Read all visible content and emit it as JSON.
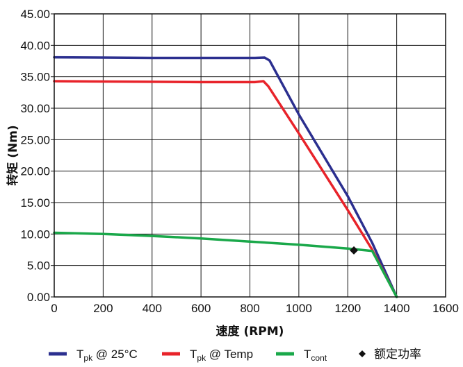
{
  "chart_data": {
    "type": "line",
    "xlabel": "速度 (RPM)",
    "ylabel": "转矩 (Nm)",
    "xlim": [
      0,
      1600
    ],
    "ylim": [
      0,
      45
    ],
    "x_ticks": [
      "0",
      "200",
      "400",
      "600",
      "800",
      "1000",
      "1200",
      "1400",
      "1600"
    ],
    "y_ticks": [
      "0.00",
      "5.00",
      "10.00",
      "15.00",
      "20.00",
      "25.00",
      "30.00",
      "35.00",
      "40.00",
      "45.00"
    ],
    "grid": true,
    "legend_position": "bottom",
    "series": [
      {
        "name": "T@ 25°C",
        "legend_main": "T",
        "legend_sub": "pk",
        "legend_suffix": " @ 25°C",
        "color": "#2b2f8f",
        "points": [
          [
            0,
            38.1
          ],
          [
            200,
            38.05
          ],
          [
            400,
            38.0
          ],
          [
            600,
            38.0
          ],
          [
            820,
            38.0
          ],
          [
            860,
            38.05
          ],
          [
            880,
            37.6
          ],
          [
            1000,
            29.0
          ],
          [
            1200,
            16.0
          ],
          [
            1300,
            8.6
          ],
          [
            1400,
            0.0
          ]
        ]
      },
      {
        "name": "T@ Temp",
        "legend_main": "T",
        "legend_sub": "pk",
        "legend_suffix": " @ Temp",
        "color": "#e8232a",
        "points": [
          [
            0,
            34.3
          ],
          [
            200,
            34.25
          ],
          [
            400,
            34.2
          ],
          [
            600,
            34.15
          ],
          [
            820,
            34.15
          ],
          [
            855,
            34.3
          ],
          [
            875,
            33.5
          ],
          [
            1000,
            26.0
          ],
          [
            1200,
            13.8
          ],
          [
            1300,
            7.5
          ],
          [
            1400,
            0.0
          ]
        ]
      },
      {
        "name": "T",
        "legend_main": "T",
        "legend_sub": "cont",
        "legend_suffix": "",
        "color": "#1aa84a",
        "points": [
          [
            0,
            10.2
          ],
          [
            200,
            10.0
          ],
          [
            400,
            9.7
          ],
          [
            600,
            9.3
          ],
          [
            800,
            8.8
          ],
          [
            1000,
            8.3
          ],
          [
            1200,
            7.7
          ],
          [
            1300,
            7.3
          ],
          [
            1400,
            0.0
          ]
        ]
      }
    ],
    "markers": [
      {
        "name": "额定功率",
        "x": 1225,
        "y": 7.4,
        "shape": "diamond",
        "color": "#111111"
      }
    ]
  }
}
